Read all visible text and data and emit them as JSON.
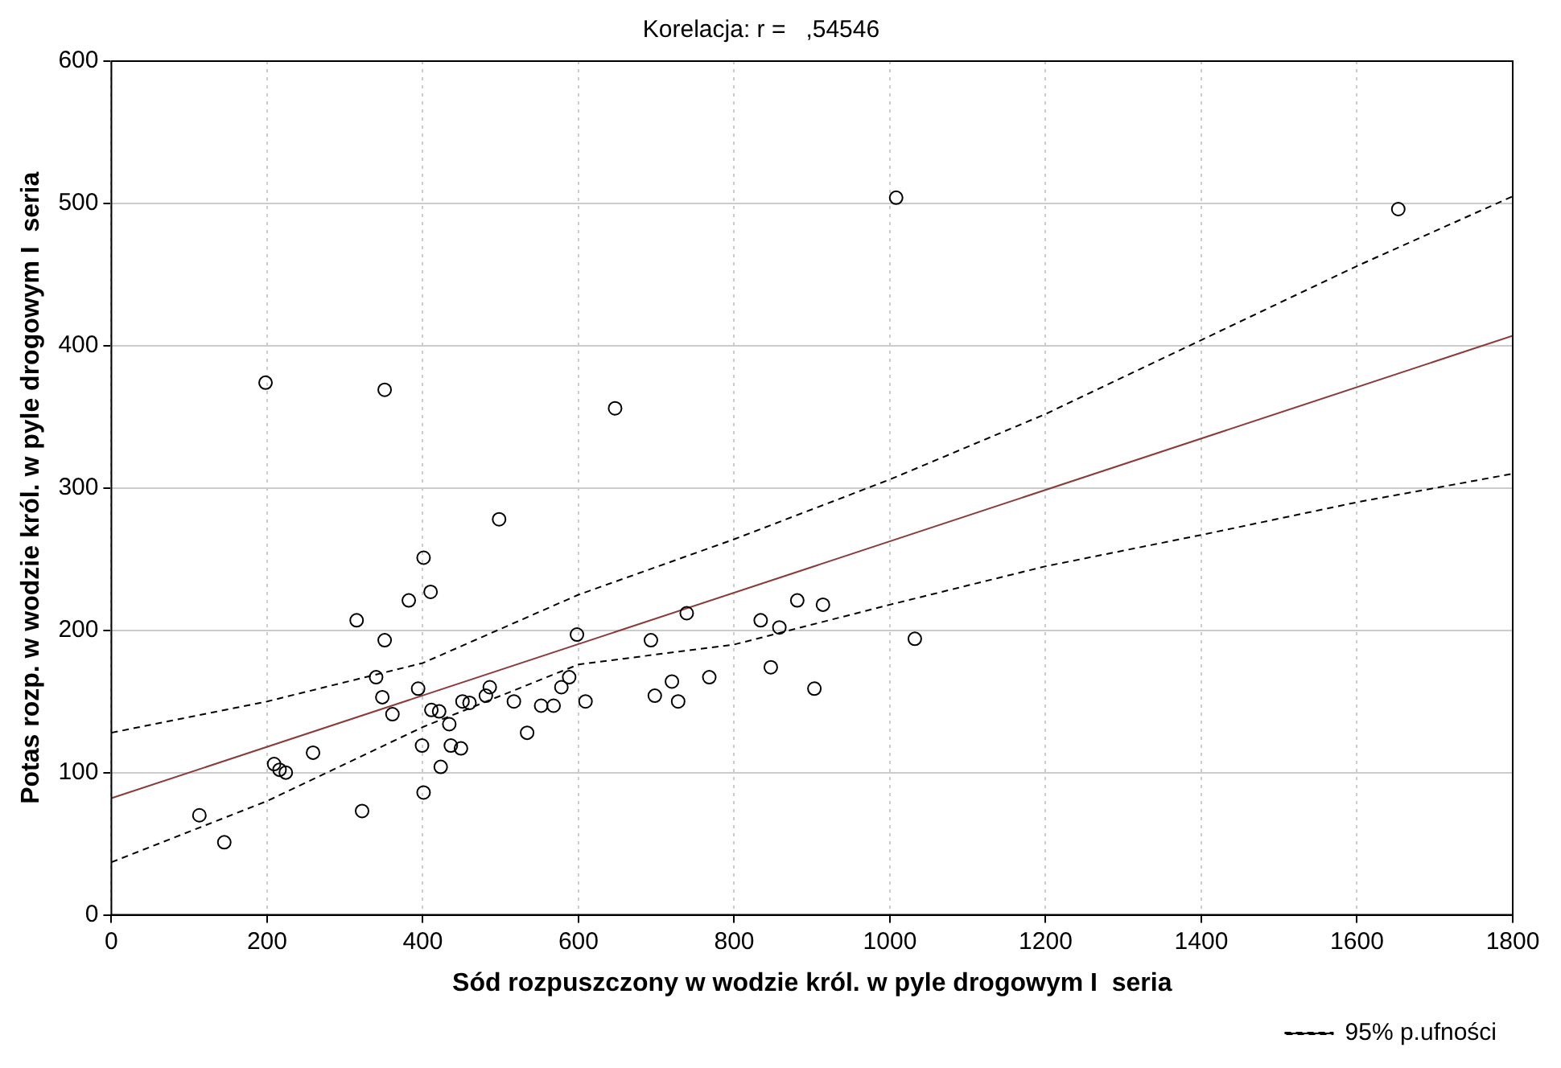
{
  "chart_data": {
    "type": "scatter",
    "title": "Korelacja: r =   ,54546",
    "xlabel": "Sód rozpuszczony w wodzie król. w pyle drogowym I  seria",
    "ylabel": "Potas rozp. w wodzie król. w pyle drogowym I  seria",
    "xlim": [
      0,
      1800
    ],
    "xticks": [
      0,
      200,
      400,
      600,
      800,
      1000,
      1200,
      1400,
      1600,
      1800
    ],
    "ylim": [
      0,
      600
    ],
    "yticks": [
      0,
      100,
      200,
      300,
      400,
      500,
      600
    ],
    "grid": true,
    "legend": "bottom right",
    "series": [
      {
        "type": "scatter",
        "color": "#000000",
        "marker": "circle",
        "x": [
          498,
          401,
          410,
          382,
          315,
          351,
          598,
          340,
          348,
          361,
          394,
          411,
          421,
          434,
          451,
          460,
          481,
          486,
          517,
          534,
          552,
          568,
          578,
          588,
          609,
          399,
          436,
          449,
          423,
          401,
          322,
          259,
          209,
          216,
          224,
          113,
          145,
          739,
          834,
          858,
          881,
          914,
          1032,
          693,
          847,
          903,
          768,
          720,
          698,
          728,
          198,
          351,
          647,
          1008,
          1653
        ],
        "values": [
          278,
          251,
          227,
          221,
          207,
          193,
          197,
          167,
          153,
          141,
          159,
          144,
          143,
          134,
          150,
          149,
          154,
          160,
          150,
          128,
          147,
          147,
          160,
          167,
          150,
          119,
          119,
          117,
          104,
          86,
          73,
          114,
          106,
          102,
          100,
          70,
          51,
          212,
          207,
          202,
          221,
          218,
          194,
          193,
          174,
          159,
          167,
          164,
          154,
          150,
          374,
          369,
          356,
          504,
          496
        ]
      },
      {
        "type": "line",
        "color": "#8b3a3a",
        "marker": "none",
        "line_style": "solid",
        "x": [
          0,
          1800
        ],
        "values": [
          82,
          407
        ]
      },
      {
        "type": "line",
        "name": "95% p.ufności",
        "color": "#000000",
        "marker": "none",
        "line_style": "dashed",
        "x": [
          0,
          200,
          400,
          600,
          800,
          1000,
          1200,
          1400,
          1600,
          1800
        ],
        "values": [
          128,
          150,
          177,
          225,
          264,
          306,
          352,
          404,
          456,
          505
        ]
      },
      {
        "type": "line",
        "color": "#000000",
        "marker": "none",
        "line_style": "dashed",
        "x": [
          0,
          200,
          400,
          600,
          800,
          1000,
          1200,
          1400,
          1600,
          1800
        ],
        "values": [
          37,
          80,
          132,
          176,
          190,
          218,
          245,
          267,
          290,
          310
        ]
      }
    ]
  }
}
